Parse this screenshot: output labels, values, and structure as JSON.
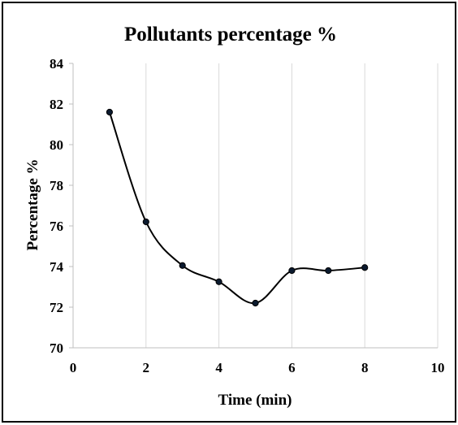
{
  "chart_data": {
    "type": "line",
    "title": "Pollutants  percentage %",
    "xlabel": "Time (min)",
    "ylabel": "Percentage %",
    "xlim": [
      0,
      10
    ],
    "ylim": [
      70,
      84
    ],
    "x_ticks": [
      "0",
      "2",
      "4",
      "6",
      "8",
      "10"
    ],
    "y_ticks": [
      "70",
      "72",
      "74",
      "76",
      "78",
      "80",
      "82",
      "84"
    ],
    "grid": "vertical",
    "legend": "none",
    "line_color": "#000000",
    "marker_color": "#0b1a2e",
    "series": [
      {
        "x": [
          1,
          2,
          3,
          4,
          5,
          6,
          7,
          8
        ],
        "values": [
          81.6,
          76.2,
          74.05,
          73.25,
          72.2,
          73.8,
          73.8,
          73.95
        ]
      }
    ]
  }
}
